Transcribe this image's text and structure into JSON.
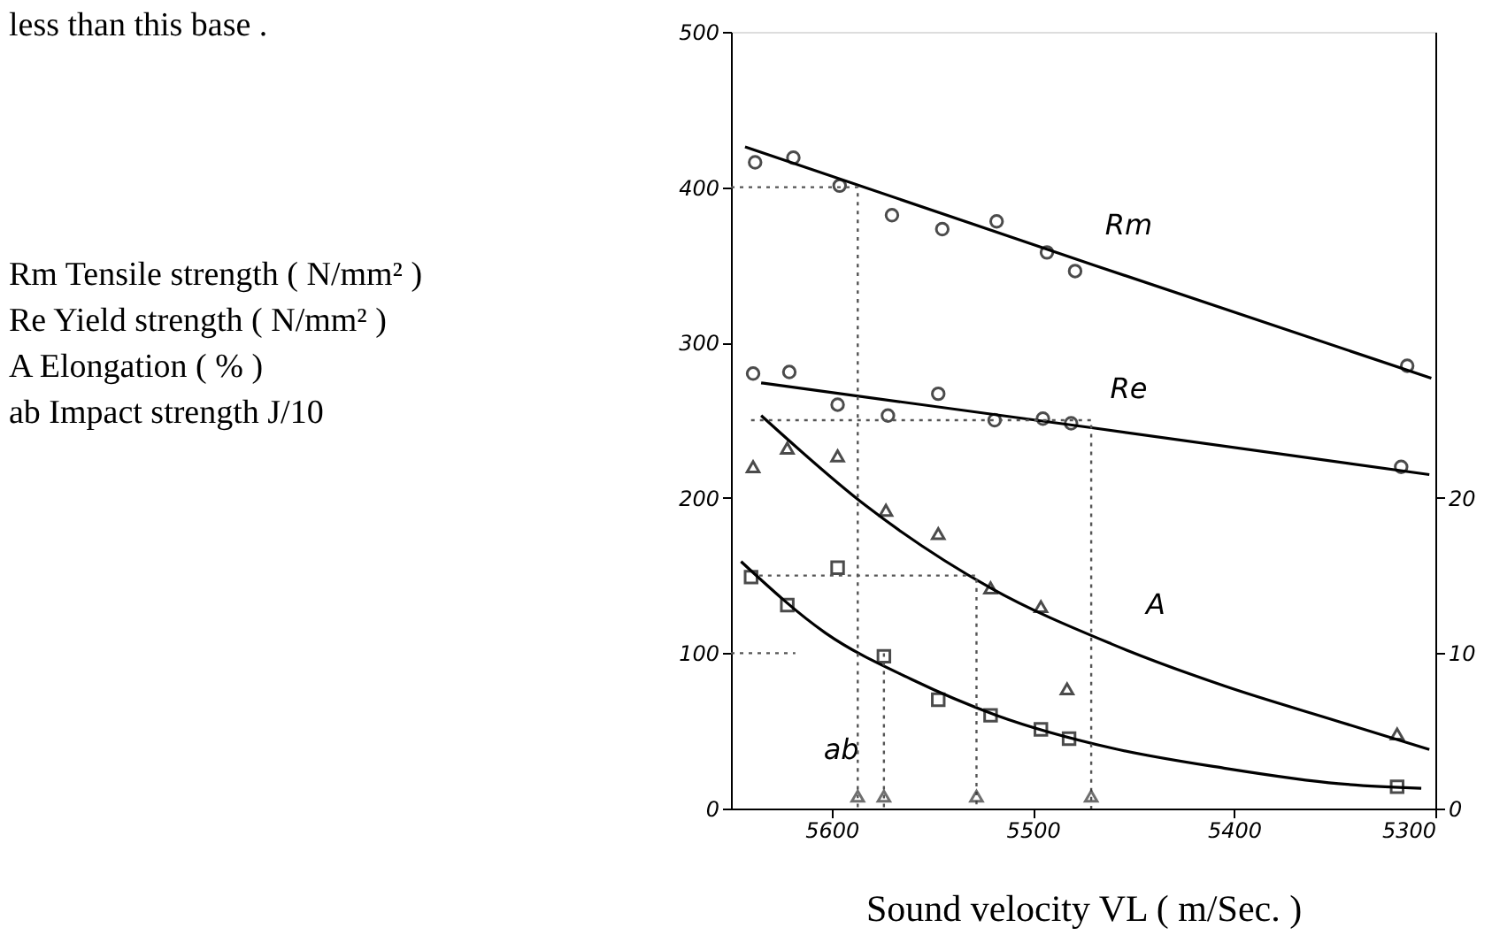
{
  "chart_data": {
    "type": "scatter",
    "xlabel": "Sound velocity VL ( m/Sec. )",
    "xlim": [
      5650,
      5300
    ],
    "xticks": [
      5600,
      5500,
      5400,
      5300
    ],
    "ylim": [
      0,
      500
    ],
    "yticks": [
      0,
      100,
      200,
      300,
      400,
      500
    ],
    "y2lim": [
      0,
      50
    ],
    "y2ticks": [
      0,
      10,
      20
    ],
    "grid": false,
    "annotations": [
      "less than this base .",
      "Rm Tensile strength ( N/mm² )",
      "Re Yield strength ( N/mm² )",
      "A Elongation ( % )",
      "ab Impact strength J/10"
    ],
    "series": [
      {
        "marker": "circle",
        "color": "#000000",
        "x": [
          5638,
          5619,
          5596,
          5570,
          5545,
          5518,
          5493,
          5479,
          5314
        ],
        "values": [
          416,
          419,
          401,
          382,
          373,
          378,
          358,
          346,
          285
        ]
      },
      {
        "marker": "circle",
        "color": "#000000",
        "x": [
          5639,
          5621,
          5597,
          5572,
          5547,
          5519,
          5495,
          5481,
          5317
        ],
        "values": [
          280,
          281,
          260,
          253,
          267,
          250,
          251,
          248,
          220
        ]
      },
      {
        "marker": "triangle",
        "color": "#000000",
        "x": [
          5639,
          5622,
          5597,
          5573,
          5547,
          5521,
          5496,
          5483,
          5319
        ],
        "values": [
          220,
          232,
          227,
          192,
          177,
          142,
          130,
          77,
          48
        ]
      },
      {
        "marker": "square",
        "color": "#000000",
        "x": [
          5640,
          5622,
          5597,
          5574,
          5547,
          5521,
          5496,
          5482,
          5319
        ],
        "values": [
          149,
          131,
          155,
          98,
          70,
          60,
          51,
          45,
          14
        ]
      },
      {
        "type": "line",
        "name": "Rm",
        "color": "#000000",
        "line_style": "solid",
        "x": [
          5643,
          5470,
          5302
        ],
        "values": [
          426,
          350,
          277
        ]
      },
      {
        "type": "line",
        "name": "Re",
        "color": "#000000",
        "line_style": "solid",
        "x": [
          5635,
          5470,
          5303
        ],
        "values": [
          274,
          245,
          215
        ]
      },
      {
        "type": "line",
        "name": "A",
        "color": "#000000",
        "line_style": "solid",
        "x": [
          5635,
          5583,
          5521,
          5461,
          5405,
          5348,
          5303
        ],
        "values": [
          253,
          195,
          142,
          106,
          79,
          56,
          38
        ]
      },
      {
        "type": "line",
        "name": "ab",
        "color": "#000000",
        "line_style": "solid",
        "x": [
          5645,
          5603,
          5560,
          5518,
          5461,
          5405,
          5348,
          5307
        ],
        "values": [
          159,
          113,
          83,
          60,
          39,
          26,
          16,
          13
        ]
      },
      {
        "type": "line",
        "color": "#555555",
        "line_style": "dotted",
        "x": [
          5650,
          5587,
          5587
        ],
        "values": [
          400,
          400,
          0
        ]
      },
      {
        "type": "line",
        "color": "#555555",
        "line_style": "dotted",
        "x": [
          5640,
          5471,
          5471
        ],
        "values": [
          250,
          250,
          0
        ]
      },
      {
        "type": "line",
        "color": "#555555",
        "line_style": "dotted",
        "x": [
          5636,
          5528,
          5528
        ],
        "values": [
          150,
          150,
          0
        ]
      },
      {
        "type": "line",
        "color": "#555555",
        "line_style": "dotted",
        "x": [
          5650,
          5618
        ],
        "values": [
          100,
          100
        ]
      },
      {
        "type": "line",
        "color": "#555555",
        "line_style": "dotted",
        "x": [
          5574,
          5574
        ],
        "values": [
          100,
          0
        ]
      },
      {
        "marker": "triangle",
        "color": "#333333",
        "x": [
          5587,
          5574,
          5528,
          5471
        ],
        "values": [
          8,
          8,
          8,
          8
        ]
      }
    ]
  }
}
